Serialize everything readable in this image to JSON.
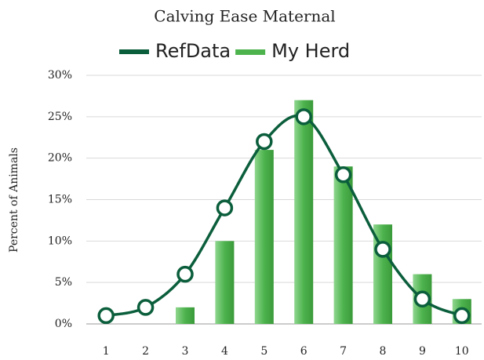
{
  "chart_data": {
    "type": "bar",
    "title": "Calving Ease Maternal",
    "y_label": "Percent of Animals",
    "categories": [
      "1",
      "2",
      "3",
      "4",
      "5",
      "6",
      "7",
      "8",
      "9",
      "10"
    ],
    "series": [
      {
        "name": "RefData",
        "type": "line",
        "color": "#0b5e3c",
        "values": [
          1,
          2,
          6,
          14,
          22,
          25,
          18,
          9,
          3,
          1
        ]
      },
      {
        "name": "My Herd",
        "type": "bar",
        "color": "#4db34d",
        "values": [
          0,
          0,
          2,
          10,
          21,
          27,
          19,
          12,
          6,
          3
        ]
      }
    ],
    "ylim": [
      0,
      30
    ],
    "yticks": [
      {
        "value": 0,
        "label": "0%"
      },
      {
        "value": 5,
        "label": "5%"
      },
      {
        "value": 10,
        "label": "10%"
      },
      {
        "value": 15,
        "label": "15%"
      },
      {
        "value": 20,
        "label": "20%"
      },
      {
        "value": 25,
        "label": "25%"
      },
      {
        "value": 30,
        "label": "30%"
      }
    ],
    "grid": true
  }
}
